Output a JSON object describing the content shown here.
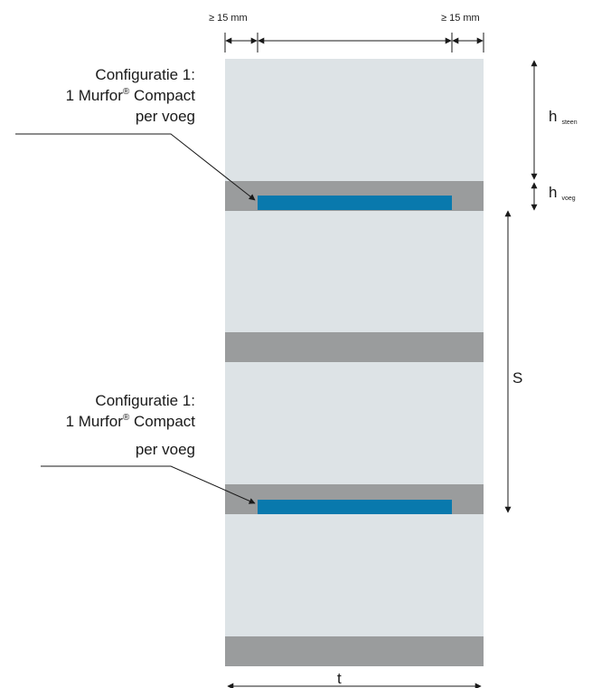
{
  "colors": {
    "brick": "#dde3e6",
    "joint": "#9a9c9d",
    "reinforcement": "#0979ad",
    "line": "#1a1a1a"
  },
  "dimensions": {
    "edge_left": "≥ 15 mm",
    "edge_right": "≥ 15 mm",
    "h_steen_main": "h",
    "h_steen_sub": "steen",
    "h_voeg_main": "h",
    "h_voeg_sub": "voeg",
    "spacing": "S",
    "thickness": "t"
  },
  "callouts": [
    {
      "line1": "Configuratie 1:",
      "line2_pre": "1 Murfor",
      "line2_sup": "®",
      "line2_post": " Compact",
      "line3": "per voeg"
    },
    {
      "line1": "Configuratie 1:",
      "line2_pre": "1 Murfor",
      "line2_sup": "®",
      "line2_post": " Compact",
      "line3": "per voeg"
    }
  ]
}
